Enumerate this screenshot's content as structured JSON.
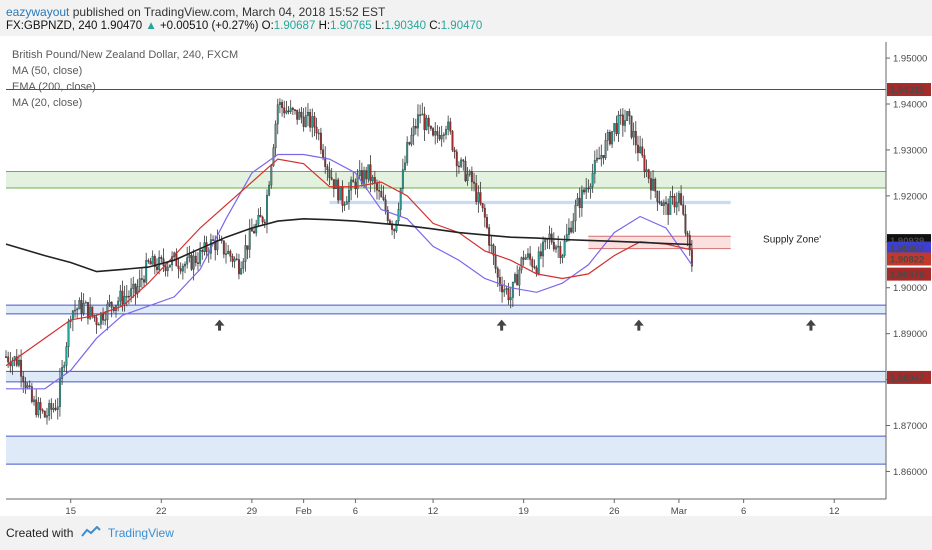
{
  "header": {
    "author": "eazywayout",
    "published": "published on TradingView.com, March 04, 2018 15:52 EST",
    "symbol": "FX:GBPNZD, 240",
    "last": "1.90470",
    "arrow": "▲",
    "change": "+0.00510 (+0.27%)",
    "o_label": "O:",
    "o_value": "1.90687",
    "h_label": "H:",
    "h_value": "1.90765",
    "l_label": "L:",
    "l_value": "1.90340",
    "c_label": "C:",
    "c_value": "1.90470"
  },
  "legend": {
    "title": "British Pound/New Zealand Dollar, 240, FXCM",
    "ma50": "MA (50, close)",
    "ema200": "EMA (200, close)",
    "ma20": "MA (20, close)"
  },
  "footer": {
    "created": "Created with",
    "brand": "TradingView"
  },
  "colors": {
    "up": "#26a69a",
    "down": "#a52a2a",
    "ma20": "#7b68ee",
    "ma50": "#d32f2f",
    "ema200": "#222222",
    "price_tag": "#a52a2a"
  },
  "chart_data": {
    "type": "candlestick",
    "symbol": "GBPNZD",
    "timeframe": "240",
    "ylim": [
      1.854,
      1.9535
    ],
    "yticks": [
      1.86,
      1.87,
      1.88,
      1.89,
      1.9,
      1.91,
      1.92,
      1.93,
      1.94,
      1.95
    ],
    "ytick_labels": [
      "1.86000",
      "1.87000",
      "1.88000",
      "1.89000",
      "1.90000",
      "1.91000",
      "1.92000",
      "1.93000",
      "1.94000",
      "1.95000"
    ],
    "xticks": [
      "15",
      "22",
      "29",
      "Feb",
      "6",
      "12",
      "19",
      "26",
      "Mar",
      "6",
      "12"
    ],
    "xtick_days": [
      5,
      12,
      19,
      23,
      27,
      33,
      40,
      47,
      52,
      57,
      64
    ],
    "day_range": [
      0,
      68
    ],
    "candles_per_day": 6,
    "price_levels": [
      {
        "label": "1.94315",
        "value": 1.94315,
        "color": "#a52a2a"
      },
      {
        "label": "1.90939",
        "value": 1.90939,
        "color": "#111111"
      },
      {
        "label": "1.90907",
        "value": 1.90907,
        "color": "#3f3fcf"
      },
      {
        "label": "1.90822",
        "value": 1.90822,
        "color": "#c0392b"
      },
      {
        "label": "1.90470",
        "value": 1.9047,
        "color": "#a52a2a"
      },
      {
        "label": "1.88047",
        "value": 1.88047,
        "color": "#a52a2a"
      }
    ],
    "annotations": {
      "supply_zone": "Supply Zone'",
      "support_arrows_days": [
        16.5,
        38.3,
        48.9,
        62.2,
        72.8
      ]
    },
    "zones": [
      {
        "kind": "green",
        "top": 1.9253,
        "bottom": 1.9217
      },
      {
        "kind": "blue_band",
        "top": 1.9188,
        "bottom": 1.9182
      },
      {
        "kind": "blue",
        "top": 1.8962,
        "bottom": 1.8943
      },
      {
        "kind": "blue",
        "top": 1.8818,
        "bottom": 1.8795
      },
      {
        "kind": "blue",
        "top": 1.8677,
        "bottom": 1.8616
      },
      {
        "kind": "supply",
        "top": 1.9112,
        "bottom": 1.9085
      }
    ],
    "series": [
      {
        "name": "MA (20, close)",
        "color": "#7b68ee",
        "points": [
          [
            0,
            1.878
          ],
          [
            3,
            1.878
          ],
          [
            5,
            1.882
          ],
          [
            7,
            1.889
          ],
          [
            9,
            1.894
          ],
          [
            11,
            1.896
          ],
          [
            13,
            1.898
          ],
          [
            15,
            1.904
          ],
          [
            17,
            1.915
          ],
          [
            19,
            1.925
          ],
          [
            21,
            1.929
          ],
          [
            23,
            1.929
          ],
          [
            25,
            1.928
          ],
          [
            27,
            1.925
          ],
          [
            28,
            1.921
          ],
          [
            29,
            1.917
          ],
          [
            31,
            1.915
          ],
          [
            33,
            1.909
          ],
          [
            35,
            1.906
          ],
          [
            37,
            1.902
          ],
          [
            39,
            1.9
          ],
          [
            41,
            1.899
          ],
          [
            43,
            1.901
          ],
          [
            45,
            1.905
          ],
          [
            47,
            1.912
          ],
          [
            49,
            1.9155
          ],
          [
            51,
            1.913
          ],
          [
            53,
            1.905
          ]
        ]
      },
      {
        "name": "MA (50, close)",
        "color": "#d32f2f",
        "points": [
          [
            0,
            1.883
          ],
          [
            3,
            1.889
          ],
          [
            5,
            1.893
          ],
          [
            7,
            1.894
          ],
          [
            9,
            1.896
          ],
          [
            11,
            1.901
          ],
          [
            13,
            1.907
          ],
          [
            15,
            1.913
          ],
          [
            17,
            1.918
          ],
          [
            19,
            1.923
          ],
          [
            21,
            1.928
          ],
          [
            23,
            1.927
          ],
          [
            25,
            1.922
          ],
          [
            27,
            1.922
          ],
          [
            29,
            1.923
          ],
          [
            31,
            1.92
          ],
          [
            33,
            1.914
          ],
          [
            35,
            1.912
          ],
          [
            37,
            1.908
          ],
          [
            39,
            1.906
          ],
          [
            41,
            1.903
          ],
          [
            43,
            1.902
          ],
          [
            45,
            1.903
          ],
          [
            47,
            1.907
          ],
          [
            49,
            1.91
          ],
          [
            51,
            1.9095
          ],
          [
            53,
            1.9082
          ]
        ]
      },
      {
        "name": "EMA (200, close)",
        "color": "#222222",
        "points": [
          [
            0,
            1.9095
          ],
          [
            3,
            1.907
          ],
          [
            5,
            1.9055
          ],
          [
            7,
            1.9035
          ],
          [
            9,
            1.904
          ],
          [
            11,
            1.9045
          ],
          [
            13,
            1.906
          ],
          [
            15,
            1.9085
          ],
          [
            17,
            1.911
          ],
          [
            19,
            1.913
          ],
          [
            21,
            1.9145
          ],
          [
            23,
            1.915
          ],
          [
            25,
            1.9148
          ],
          [
            27,
            1.9145
          ],
          [
            29,
            1.914
          ],
          [
            31,
            1.9135
          ],
          [
            33,
            1.9128
          ],
          [
            35,
            1.912
          ],
          [
            37,
            1.9115
          ],
          [
            39,
            1.911
          ],
          [
            41,
            1.9108
          ],
          [
            43,
            1.9105
          ],
          [
            45,
            1.9103
          ],
          [
            47,
            1.9101
          ],
          [
            49,
            1.9099
          ],
          [
            51,
            1.9096
          ],
          [
            53,
            1.9094
          ]
        ]
      }
    ],
    "close_path": [
      [
        0,
        1.885
      ],
      [
        1,
        1.884
      ],
      [
        2,
        1.875
      ],
      [
        3,
        1.872
      ],
      [
        4,
        1.875
      ],
      [
        5,
        1.895
      ],
      [
        6,
        1.896
      ],
      [
        7,
        1.893
      ],
      [
        8,
        1.896
      ],
      [
        9,
        1.898
      ],
      [
        10,
        1.899
      ],
      [
        11,
        1.905
      ],
      [
        12,
        1.905
      ],
      [
        13,
        1.906
      ],
      [
        14,
        1.905
      ],
      [
        15,
        1.907
      ],
      [
        16,
        1.91
      ],
      [
        17,
        1.908
      ],
      [
        18,
        1.905
      ],
      [
        19,
        1.912
      ],
      [
        20,
        1.916
      ],
      [
        21,
        1.94
      ],
      [
        22,
        1.938
      ],
      [
        23,
        1.937
      ],
      [
        24,
        1.935
      ],
      [
        25,
        1.925
      ],
      [
        26,
        1.919
      ],
      [
        27,
        1.923
      ],
      [
        28,
        1.925
      ],
      [
        29,
        1.919
      ],
      [
        30,
        1.913
      ],
      [
        31,
        1.93
      ],
      [
        32,
        1.938
      ],
      [
        33,
        1.932
      ],
      [
        34,
        1.936
      ],
      [
        35,
        1.927
      ],
      [
        36,
        1.923
      ],
      [
        37,
        1.915
      ],
      [
        38,
        1.902
      ],
      [
        39,
        1.898
      ],
      [
        40,
        1.907
      ],
      [
        41,
        1.905
      ],
      [
        42,
        1.911
      ],
      [
        43,
        1.908
      ],
      [
        44,
        1.917
      ],
      [
        45,
        1.923
      ],
      [
        46,
        1.929
      ],
      [
        47,
        1.935
      ],
      [
        48,
        1.937
      ],
      [
        49,
        1.929
      ],
      [
        50,
        1.922
      ],
      [
        51,
        1.917
      ],
      [
        52,
        1.92
      ],
      [
        53,
        1.9047
      ]
    ]
  }
}
